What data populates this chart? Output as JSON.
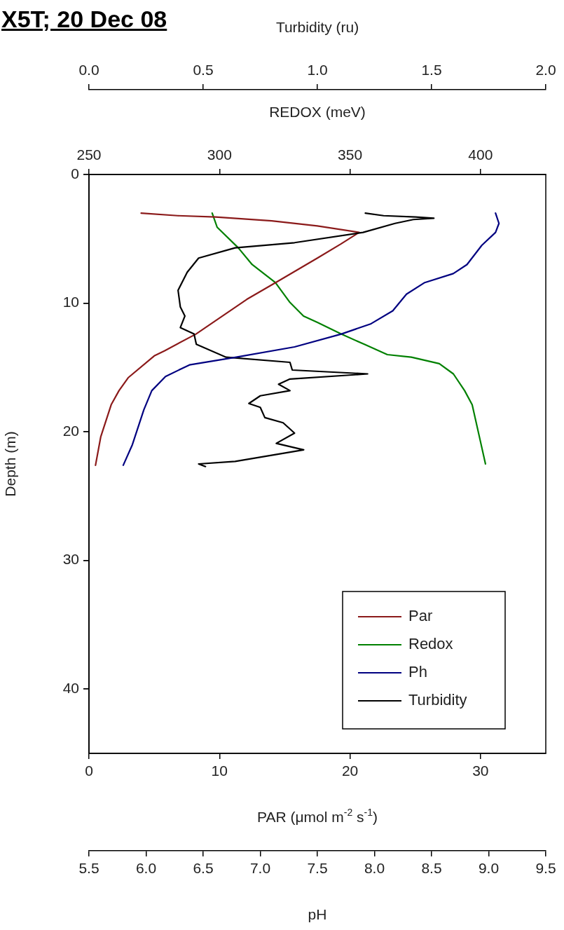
{
  "chart_data": [
    {
      "type": "line",
      "title": "X5T; 20 Dec 08",
      "xlabel": "PAR (μmol m$^{-2}$ s$^{-1}$)",
      "x2label": "REDOX (meV)",
      "ylabel": "Depth (m)",
      "xlim": [
        0,
        35
      ],
      "xticks": [
        0,
        10,
        20,
        30
      ],
      "x2lim": [
        250,
        425
      ],
      "x2ticks": [
        250,
        300,
        350,
        400
      ],
      "ylim": [
        45,
        0
      ],
      "yticks": [
        0,
        10,
        20,
        30,
        40
      ],
      "grid": false,
      "legend": "bottom right",
      "marker": "none",
      "line_style": "solid",
      "series": [
        {
          "name": "Par",
          "color": "#8b1a1a",
          "x": [
            4.0,
            6.8,
            9.7,
            14.0,
            17.5,
            20.7,
            19.3,
            17.5,
            14.3,
            12.1,
            8.2,
            5.8,
            5.0,
            3.0,
            2.3,
            1.7,
            0.9,
            0.5
          ],
          "values": [
            3.0,
            3.2,
            3.3,
            3.6,
            4.0,
            4.5,
            5.4,
            6.5,
            8.4,
            9.7,
            12.4,
            13.7,
            14.1,
            15.8,
            16.8,
            17.9,
            20.4,
            22.6
          ]
        },
        {
          "name": "Redox",
          "color": "#008000",
          "axis": "x2",
          "x": [
            297.2,
            299.1,
            307.2,
            312.5,
            321.4,
            326.8,
            332.2,
            337.5,
            346.6,
            355.5,
            364.3,
            373.5,
            384.2,
            389.6,
            393.9,
            396.8,
            399.8,
            401.9
          ],
          "values": [
            3.0,
            4.1,
            5.7,
            7.0,
            8.4,
            9.9,
            11.0,
            11.5,
            12.4,
            13.2,
            14.0,
            14.2,
            14.7,
            15.5,
            16.8,
            17.9,
            20.6,
            22.5
          ]
        }
      ]
    },
    {
      "type": "line",
      "xlabel": "pH",
      "x2label": "Turbidity (ru)",
      "xlim": [
        5.5,
        9.5
      ],
      "xticks": [
        5.5,
        {
          "value": 6,
          "label": "6.0"
        },
        6.5,
        {
          "value": 7,
          "label": "7.0"
        },
        7.5,
        {
          "value": 8,
          "label": "8.0"
        },
        8.5,
        {
          "value": 9,
          "label": "9.0"
        },
        9.5
      ],
      "x2lim": [
        0,
        2
      ],
      "x2ticks": [
        {
          "value": 0,
          "label": "0.0"
        },
        {
          "value": 0.5,
          "label": "0.5"
        },
        {
          "value": 1,
          "label": "1.0"
        },
        {
          "value": 1.5,
          "label": "1.5"
        },
        {
          "value": 2,
          "label": "2.0"
        }
      ],
      "ylim": [
        45,
        0
      ],
      "yticks": [
        0,
        10,
        20,
        30,
        40
      ],
      "tick_labels": "x",
      "grid": false,
      "legend": "bottom right",
      "marker": "none",
      "line_style": "solid",
      "series": [
        {
          "name": "Ph",
          "color": "#000080",
          "x": [
            9.06,
            9.09,
            9.06,
            8.94,
            8.81,
            8.69,
            8.44,
            8.28,
            8.16,
            7.97,
            7.71,
            7.3,
            6.79,
            6.38,
            6.17,
            6.05,
            5.98,
            5.88,
            5.8
          ],
          "values": [
            3.0,
            3.8,
            4.5,
            5.5,
            7.0,
            7.7,
            8.4,
            9.3,
            10.6,
            11.6,
            12.4,
            13.4,
            14.2,
            14.8,
            15.7,
            16.8,
            18.3,
            21.0,
            22.6
          ]
        },
        {
          "name": "Turbidity",
          "color": "#000000",
          "axis": "x2",
          "x": [
            1.21,
            1.29,
            1.43,
            1.51,
            1.42,
            1.34,
            1.2,
            0.9,
            0.64,
            0.48,
            0.43,
            0.39,
            0.4,
            0.42,
            0.4,
            0.46,
            0.47,
            0.6,
            0.88,
            0.89,
            1.22,
            0.88,
            0.83,
            0.88,
            0.75,
            0.7,
            0.75,
            0.77,
            0.85,
            0.9,
            0.82,
            0.94,
            0.64,
            0.48,
            0.51
          ],
          "values": [
            3.0,
            3.2,
            3.3,
            3.4,
            3.5,
            3.8,
            4.5,
            5.3,
            5.7,
            6.5,
            7.6,
            9.0,
            10.3,
            11.0,
            11.9,
            12.4,
            13.2,
            14.2,
            14.6,
            15.2,
            15.5,
            15.9,
            16.3,
            16.8,
            17.2,
            17.8,
            18.1,
            18.9,
            19.3,
            20.1,
            20.9,
            21.4,
            22.3,
            22.5,
            22.7
          ]
        }
      ]
    }
  ]
}
